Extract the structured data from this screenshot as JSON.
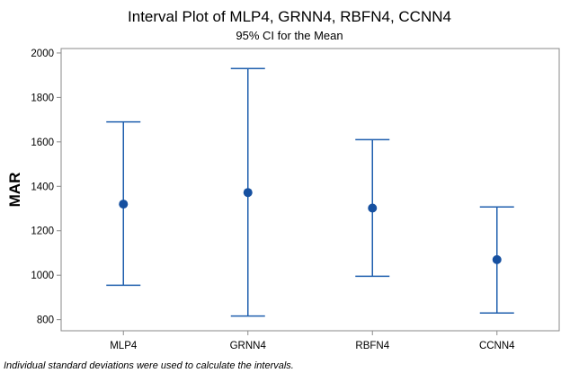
{
  "chart_data": {
    "type": "interval",
    "title": "Interval Plot of MLP4, GRNN4, RBFN4, CCNN4",
    "subtitle": "95% CI for the Mean",
    "ylabel": "MAR",
    "xlabel": "",
    "ylim": [
      750,
      2020
    ],
    "yticks": [
      "800",
      "1000",
      "1200",
      "1400",
      "1600",
      "1800",
      "2000"
    ],
    "grid": false,
    "categories": [
      "MLP4",
      "GRNN4",
      "RBFN4",
      "CCNN4"
    ],
    "means": [
      1320,
      1372,
      1302,
      1070
    ],
    "lower": [
      955,
      816,
      995,
      830
    ],
    "upper": [
      1690,
      1930,
      1610,
      1307
    ],
    "color": "#1f5fae",
    "point_color": "#1650a0",
    "footnote": "Individual standard deviations were used to calculate the intervals."
  }
}
